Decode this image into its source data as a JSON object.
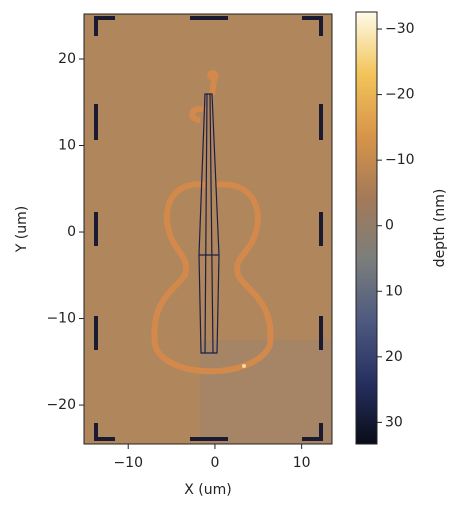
{
  "chart_data": {
    "type": "image",
    "xlabel": "X (um)",
    "ylabel": "Y (um)",
    "xlim": [
      -15.1,
      13.5
    ],
    "ylim": [
      -24.5,
      25.2
    ],
    "xticks": [
      {
        "value": -10,
        "label": "−10"
      },
      0,
      10
    ],
    "yticks": [
      {
        "value": -20,
        "label": "−20"
      },
      {
        "value": -10,
        "label": "−10"
      },
      0,
      10,
      20
    ],
    "colorbar": {
      "label": "depth (nm)",
      "lim": [
        -32.6,
        33.3
      ],
      "ticks": [
        {
          "value": -30,
          "label": "−30"
        },
        {
          "value": -20,
          "label": "−20"
        },
        {
          "value": -10,
          "label": "−10"
        },
        0,
        10,
        20,
        30
      ],
      "colors": [
        "#fffbe8",
        "#f2c45a",
        "#d8954a",
        "#a47a58",
        "#7c7e7c",
        "#4e5a80",
        "#263060",
        "#0a0c18"
      ]
    }
  }
}
